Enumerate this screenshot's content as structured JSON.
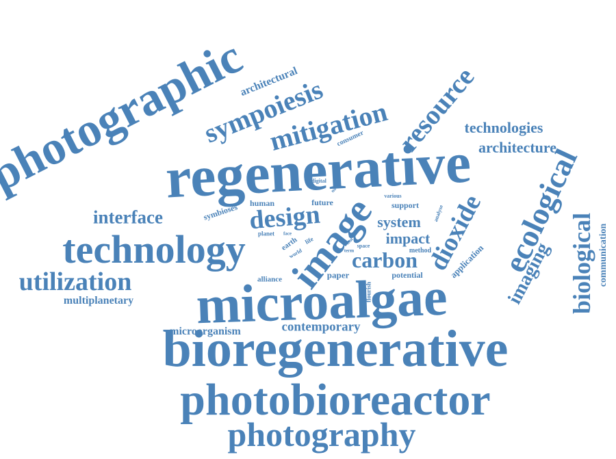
{
  "color": "#4a82b8",
  "words": [
    "photographic",
    "regenerative",
    "microalgae",
    "bioregenerative",
    "photobioreactor",
    "photography",
    "technology",
    "utilization",
    "image",
    "ecological",
    "biological",
    "resource",
    "sympoiesis",
    "mitigation",
    "design",
    "dioxide",
    "carbon",
    "imaging",
    "interface",
    "technologies",
    "architecture",
    "architectural",
    "multiplanetary",
    "microorganism",
    "contemporary",
    "system",
    "impact",
    "communication",
    "application",
    "consumer",
    "symbioses",
    "human",
    "future",
    "support",
    "various",
    "digital",
    "novel",
    "analyse",
    "planet",
    "face",
    "earth",
    "world",
    "life",
    "tool",
    "term",
    "space",
    "method",
    "alliance",
    "paper",
    "flourish",
    "potential"
  ]
}
